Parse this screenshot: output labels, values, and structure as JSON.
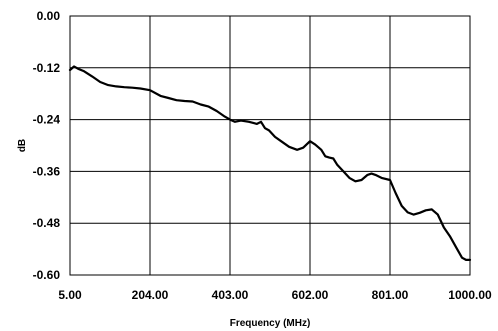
{
  "chart_data": {
    "type": "line",
    "title": "",
    "xlabel": "Frequency (MHz)",
    "ylabel": "dB",
    "xlim": [
      5,
      1000
    ],
    "ylim": [
      -0.6,
      0
    ],
    "x_ticks": [
      5,
      204,
      403,
      602,
      801,
      1000
    ],
    "x_tick_labels": [
      "5.00",
      "204.00",
      "403.00",
      "602.00",
      "801.00",
      "1000.00"
    ],
    "y_ticks": [
      0,
      -0.12,
      -0.24,
      -0.36,
      -0.48,
      -0.6
    ],
    "y_tick_labels": [
      "0.00",
      "-0.12",
      "-0.24",
      "-0.36",
      "-0.48",
      "-0.60"
    ],
    "grid": true,
    "legend": "none",
    "series": [
      {
        "color": "#000000",
        "x": [
          5,
          15,
          25,
          40,
          60,
          80,
          100,
          120,
          140,
          160,
          180,
          204,
          230,
          250,
          270,
          290,
          310,
          330,
          350,
          370,
          390,
          403,
          415,
          430,
          450,
          470,
          480,
          490,
          500,
          515,
          530,
          550,
          570,
          585,
          602,
          615,
          630,
          640,
          650,
          660,
          670,
          685,
          700,
          715,
          730,
          745,
          755,
          765,
          780,
          801,
          815,
          830,
          845,
          860,
          875,
          890,
          905,
          920,
          935,
          950,
          965,
          980,
          990,
          1000
        ],
        "values": [
          -0.125,
          -0.117,
          -0.122,
          -0.128,
          -0.14,
          -0.153,
          -0.16,
          -0.163,
          -0.165,
          -0.166,
          -0.168,
          -0.172,
          -0.185,
          -0.19,
          -0.195,
          -0.197,
          -0.198,
          -0.205,
          -0.21,
          -0.22,
          -0.233,
          -0.24,
          -0.245,
          -0.242,
          -0.245,
          -0.25,
          -0.245,
          -0.26,
          -0.265,
          -0.28,
          -0.29,
          -0.303,
          -0.31,
          -0.305,
          -0.29,
          -0.298,
          -0.31,
          -0.325,
          -0.328,
          -0.33,
          -0.345,
          -0.36,
          -0.375,
          -0.383,
          -0.38,
          -0.368,
          -0.365,
          -0.368,
          -0.375,
          -0.38,
          -0.41,
          -0.44,
          -0.455,
          -0.46,
          -0.456,
          -0.45,
          -0.448,
          -0.46,
          -0.49,
          -0.51,
          -0.535,
          -0.56,
          -0.565,
          -0.565
        ]
      }
    ]
  }
}
